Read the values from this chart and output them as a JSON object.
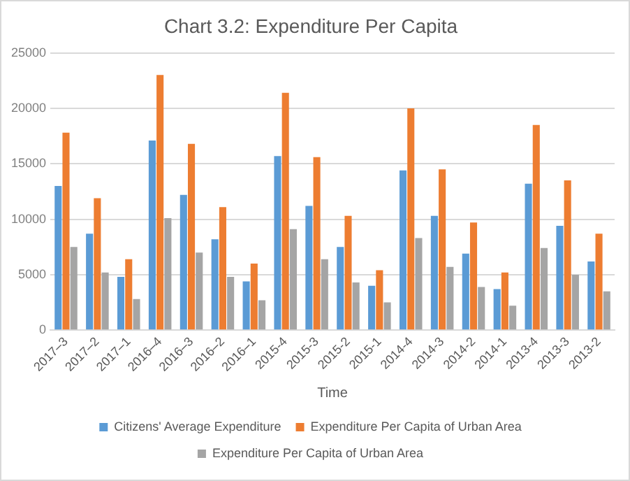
{
  "chart_data": {
    "type": "bar",
    "title": "Chart 3.2: Expenditure Per Capita",
    "xlabel": "Time",
    "categories": [
      "2017–3",
      "2017–2",
      "2017–1",
      "2016–4",
      "2016–3",
      "2016–2",
      "2016–1",
      "2015-4",
      "2015-3",
      "2015-2",
      "2015-1",
      "2014-4",
      "2014-3",
      "2014-2",
      "2014-1",
      "2013-4",
      "2013-3",
      "2013-2"
    ],
    "series": [
      {
        "name": "Citizens' Average Expenditure",
        "color": "#5b9bd5",
        "values": [
          13000,
          8700,
          4800,
          17100,
          12200,
          8200,
          4400,
          15700,
          11200,
          7500,
          4000,
          14400,
          10300,
          6900,
          3700,
          13200,
          9400,
          6200
        ]
      },
      {
        "name": "Expenditure Per Capita of Urban Area",
        "color": "#ed7d31",
        "values": [
          17800,
          11900,
          6400,
          23000,
          16800,
          11100,
          6000,
          21400,
          15600,
          10300,
          5400,
          20000,
          14500,
          9700,
          5200,
          18500,
          13500,
          8700
        ]
      },
      {
        "name": "Expenditure Per Capita of Urban Area",
        "color": "#a5a5a5",
        "values": [
          7500,
          5200,
          2800,
          10100,
          7000,
          4800,
          2700,
          9100,
          6400,
          4300,
          2500,
          8300,
          5700,
          3900,
          2200,
          7400,
          5000,
          3500
        ]
      }
    ],
    "ylim": [
      0,
      25000
    ],
    "yticks": [
      0,
      5000,
      10000,
      15000,
      20000,
      25000
    ],
    "grid": "y",
    "legend": "bottom"
  }
}
